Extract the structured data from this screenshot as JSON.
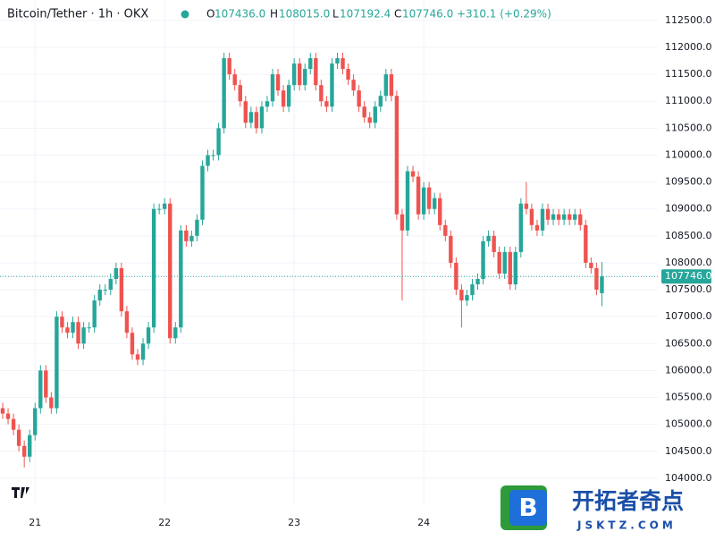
{
  "chart_data": {
    "type": "candlestick",
    "title": "Bitcoin/Tether · 1h · OKX",
    "legend": {
      "open_label": "O",
      "open": "107436.0",
      "high_label": "H",
      "high": "108015.0",
      "low_label": "L",
      "low": "107192.4",
      "close_label": "C",
      "close": "107746.0",
      "change": "+310.1 (+0.29%)"
    },
    "up_color": "#26a69a",
    "down_color": "#ef5350",
    "grid": true,
    "categories": [
      null,
      null,
      null,
      null,
      null,
      null,
      "21",
      null,
      null,
      null,
      null,
      null,
      null,
      null,
      null,
      null,
      null,
      null,
      null,
      null,
      null,
      null,
      null,
      null,
      null,
      null,
      null,
      null,
      null,
      null,
      "22",
      null,
      null,
      null,
      null,
      null,
      null,
      null,
      null,
      null,
      null,
      null,
      null,
      null,
      null,
      null,
      null,
      null,
      null,
      null,
      null,
      null,
      null,
      null,
      "23",
      null,
      null,
      null,
      null,
      null,
      null,
      null,
      null,
      null,
      null,
      null,
      null,
      null,
      null,
      null,
      null,
      null,
      null,
      null,
      null,
      null,
      null,
      null,
      "24",
      null,
      null,
      null,
      null,
      null,
      null,
      null,
      null,
      null,
      null,
      null,
      null,
      null,
      null,
      null,
      null,
      null,
      null,
      null,
      null,
      null,
      null,
      null,
      null,
      null,
      null,
      null,
      null,
      null,
      null,
      null,
      null,
      null
    ],
    "open": [
      105300,
      105200,
      105100,
      104900,
      104600,
      104400,
      104800,
      105300,
      106000,
      105500,
      105300,
      107000,
      106800,
      106700,
      106900,
      106500,
      106800,
      106800,
      107300,
      107500,
      107500,
      107700,
      107900,
      107100,
      106700,
      106300,
      106200,
      106500,
      106800,
      109000,
      109000,
      109100,
      106600,
      106800,
      108600,
      108400,
      108500,
      108800,
      109800,
      110000,
      110000,
      110500,
      111800,
      111500,
      111300,
      111000,
      110600,
      110800,
      110500,
      110900,
      111000,
      111500,
      111200,
      110900,
      111300,
      111700,
      111300,
      111600,
      111800,
      111300,
      111000,
      110900,
      111700,
      111800,
      111600,
      111400,
      111200,
      110900,
      110700,
      110600,
      110900,
      111100,
      111500,
      111100,
      108900,
      108600,
      109700,
      109600,
      108900,
      109400,
      109000,
      109200,
      108700,
      108500,
      108000,
      107500,
      107300,
      107400,
      107600,
      107700,
      108400,
      108500,
      108200,
      107800,
      108200,
      107600,
      108200,
      109100,
      109000,
      108700,
      108600,
      109000,
      108800,
      108900,
      108800,
      108900,
      108800,
      108900,
      108700,
      108000,
      107900,
      107436
    ],
    "high": [
      105400,
      105300,
      105200,
      105000,
      104700,
      104900,
      105400,
      106100,
      106100,
      105600,
      107100,
      107100,
      106900,
      107000,
      107000,
      106900,
      106900,
      107400,
      107600,
      107600,
      107800,
      108000,
      108000,
      107200,
      106800,
      106400,
      106600,
      106900,
      109100,
      109100,
      109200,
      109200,
      106900,
      108700,
      108700,
      108600,
      108900,
      109900,
      110100,
      110100,
      110600,
      111900,
      111900,
      111600,
      111400,
      111100,
      110900,
      110900,
      111000,
      111100,
      111600,
      111600,
      111300,
      111400,
      111800,
      111800,
      111700,
      111900,
      111900,
      111400,
      111100,
      111800,
      111900,
      111900,
      111700,
      111500,
      111300,
      111000,
      110800,
      111000,
      111200,
      111600,
      111600,
      111200,
      109000,
      109800,
      109800,
      109700,
      109500,
      109500,
      109300,
      109300,
      108800,
      108600,
      108100,
      107600,
      107500,
      107700,
      107800,
      108500,
      108600,
      108600,
      108300,
      108300,
      108300,
      108300,
      109200,
      109500,
      109100,
      108800,
      109100,
      109100,
      109000,
      109000,
      109000,
      109000,
      109000,
      109000,
      108800,
      108100,
      108000,
      108015
    ],
    "low": [
      105100,
      105000,
      104800,
      104500,
      104200,
      104300,
      104700,
      105200,
      105400,
      105200,
      105200,
      106700,
      106600,
      106600,
      106400,
      106400,
      106700,
      106700,
      107200,
      107400,
      107400,
      107600,
      107000,
      106600,
      106200,
      106100,
      106100,
      106400,
      106700,
      108900,
      108900,
      106500,
      106500,
      106700,
      108300,
      108300,
      108400,
      108700,
      109700,
      109900,
      109900,
      110400,
      111400,
      111200,
      110900,
      110500,
      110500,
      110400,
      110400,
      110800,
      110900,
      111100,
      110800,
      110800,
      111200,
      111200,
      111200,
      111500,
      111200,
      110900,
      110800,
      110800,
      111600,
      111500,
      111300,
      111100,
      110800,
      110600,
      110500,
      110500,
      110800,
      111000,
      111000,
      108800,
      107300,
      108500,
      109500,
      108800,
      108800,
      108900,
      108900,
      108600,
      108400,
      107900,
      107400,
      106800,
      107200,
      107300,
      107500,
      107600,
      108300,
      108100,
      107700,
      107700,
      107500,
      107500,
      108100,
      108900,
      108600,
      108500,
      108500,
      108700,
      108700,
      108700,
      108700,
      108700,
      108700,
      108600,
      107900,
      107800,
      107400,
      107192.4
    ],
    "close": [
      105200,
      105100,
      104900,
      104600,
      104400,
      104800,
      105300,
      106000,
      105500,
      105300,
      107000,
      106800,
      106700,
      106900,
      106500,
      106800,
      106800,
      107300,
      107500,
      107500,
      107700,
      107900,
      107100,
      106700,
      106300,
      106200,
      106500,
      106800,
      109000,
      109000,
      109100,
      106600,
      106800,
      108600,
      108400,
      108500,
      108800,
      109800,
      110000,
      110000,
      110500,
      111800,
      111500,
      111300,
      111000,
      110600,
      110800,
      110500,
      110900,
      111000,
      111500,
      111200,
      110900,
      111300,
      111700,
      111300,
      111600,
      111800,
      111300,
      111000,
      110900,
      111700,
      111800,
      111600,
      111400,
      111200,
      110900,
      110700,
      110600,
      110900,
      111100,
      111500,
      111100,
      108900,
      108600,
      109700,
      109600,
      108900,
      109400,
      109000,
      109200,
      108700,
      108500,
      108000,
      107500,
      107300,
      107400,
      107600,
      107700,
      108400,
      108500,
      108200,
      107800,
      108200,
      107600,
      108200,
      109100,
      109000,
      108700,
      108600,
      109000,
      108800,
      108900,
      108800,
      108900,
      108800,
      108900,
      108700,
      108000,
      107900,
      107500,
      107746
    ],
    "price_label": "107746.0",
    "ylim": [
      103500,
      112880
    ],
    "yticks": [
      {
        "value": 104000,
        "label": "104000.0"
      },
      {
        "value": 104500,
        "label": "104500.0"
      },
      {
        "value": 105000,
        "label": "105000.0"
      },
      {
        "value": 105500,
        "label": "105500.0"
      },
      {
        "value": 106000,
        "label": "106000.0"
      },
      {
        "value": 106500,
        "label": "106500.0"
      },
      {
        "value": 107000,
        "label": "107000.0"
      },
      {
        "value": 107500,
        "label": "107500.0"
      },
      {
        "value": 108000,
        "label": "108000.0"
      },
      {
        "value": 108500,
        "label": "108500.0"
      },
      {
        "value": 109000,
        "label": "109000.0"
      },
      {
        "value": 109500,
        "label": "109500.0"
      },
      {
        "value": 110000,
        "label": "110000.0"
      },
      {
        "value": 110500,
        "label": "110500.0"
      },
      {
        "value": 111000,
        "label": "111000.0"
      },
      {
        "value": 111500,
        "label": "111500.0"
      },
      {
        "value": 112000,
        "label": "112000.0"
      },
      {
        "value": 112500,
        "label": "112500.0"
      }
    ]
  },
  "watermark": {
    "brand": "开拓者奇点",
    "site": "JSKTZ.COM",
    "logo_letter": "B"
  }
}
